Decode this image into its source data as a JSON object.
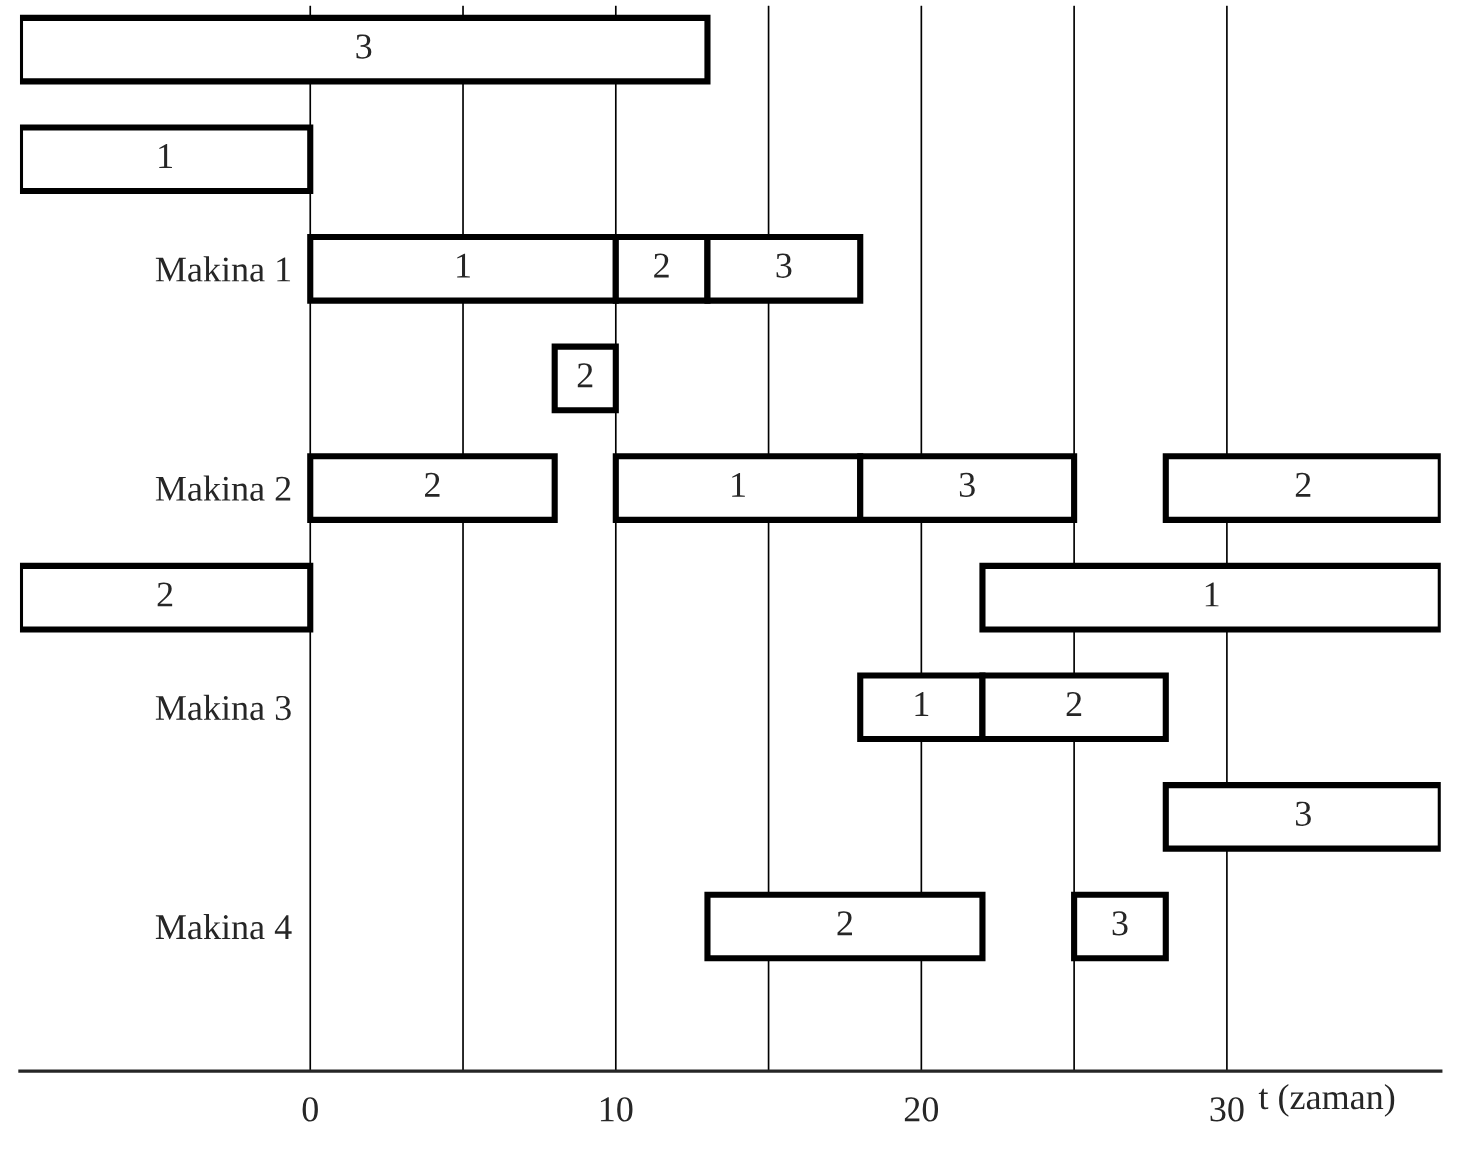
{
  "chart_data": {
    "type": "bar",
    "orientation": "horizontal",
    "xlabel": "t (zaman)",
    "categories": [
      null,
      null,
      "Makina 1",
      null,
      "Makina 2",
      null,
      "Makina 3",
      null,
      "Makina 4"
    ],
    "series": [
      {
        "name": "1",
        "color": "#ffffff",
        "base": [
          null,
          -9.5,
          0,
          null,
          10,
          22,
          18,
          null,
          null
        ],
        "values": [
          null,
          9.5,
          10,
          null,
          8,
          15,
          4,
          null,
          null
        ]
      },
      {
        "name": "2",
        "color": "#ffffff",
        "base": [
          null,
          null,
          10,
          8,
          0,
          -9.5,
          22,
          null,
          13
        ],
        "values": [
          null,
          null,
          3,
          2,
          8,
          9.5,
          6,
          null,
          9
        ]
      },
      {
        "name": "2",
        "color": "#ffffff",
        "base": [
          null,
          null,
          null,
          null,
          28,
          null,
          null,
          null,
          null
        ],
        "values": [
          null,
          null,
          null,
          null,
          9,
          null,
          null,
          null,
          null
        ]
      },
      {
        "name": "3",
        "color": "#ffffff",
        "base": [
          -9.5,
          null,
          13,
          null,
          18,
          null,
          null,
          28,
          25
        ],
        "values": [
          22.5,
          null,
          5,
          null,
          7,
          null,
          null,
          9,
          3
        ]
      }
    ],
    "xlim": [
      -9.5,
      37
    ],
    "xticks": [
      0,
      {
        "value": 5,
        "label": null
      },
      10,
      {
        "value": 15,
        "label": null
      },
      20,
      {
        "value": 25,
        "label": null
      },
      30
    ],
    "grid": "x",
    "legend": false
  }
}
